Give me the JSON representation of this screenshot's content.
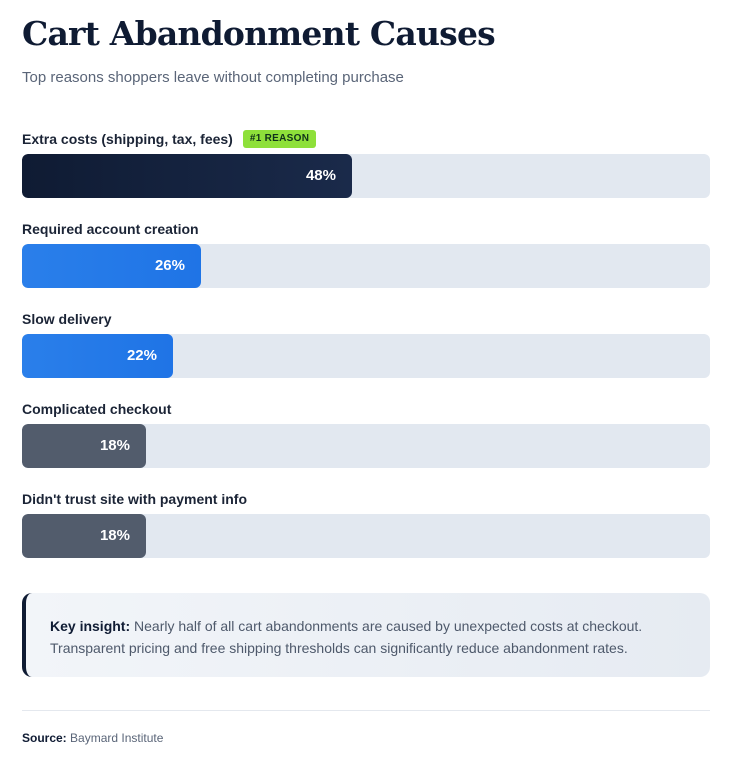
{
  "title": "Cart Abandonment Causes",
  "subtitle": "Top reasons shoppers leave without completing purchase",
  "chart_data": {
    "type": "bar",
    "orientation": "horizontal",
    "title": "Cart Abandonment Causes",
    "subtitle": "Top reasons shoppers leave without completing purchase",
    "categories": [
      "Extra costs (shipping, tax, fees)",
      "Required account creation",
      "Slow delivery",
      "Complicated checkout",
      "Didn't trust site with payment info"
    ],
    "values": [
      48,
      26,
      22,
      18,
      18
    ],
    "value_labels": [
      "48%",
      "26%",
      "22%",
      "18%",
      "18%"
    ],
    "unit": "%",
    "xlim": [
      0,
      100
    ],
    "grid": false,
    "legend": "none",
    "colors": [
      "#1a2a4a",
      "#2a7fea",
      "#2a7fea",
      "#525c6c",
      "#525c6c"
    ],
    "track_color": "#e2e8f0",
    "badges": [
      {
        "category_index": 0,
        "text": "#1 REASON",
        "color": "#8ee03a"
      }
    ]
  },
  "insight": {
    "label": "Key insight:",
    "text": "Nearly half of all cart abandonments are caused by unexpected costs at checkout. Transparent pricing and free shipping thresholds can significantly reduce abandonment rates."
  },
  "source": {
    "label": "Source:",
    "text": "Baymard Institute"
  },
  "colors": {
    "title": "#0f1b33",
    "accent_dark": "#1a2a4a",
    "accent_blue": "#2a7fea",
    "accent_gray": "#525c6c",
    "badge": "#8ee03a"
  }
}
